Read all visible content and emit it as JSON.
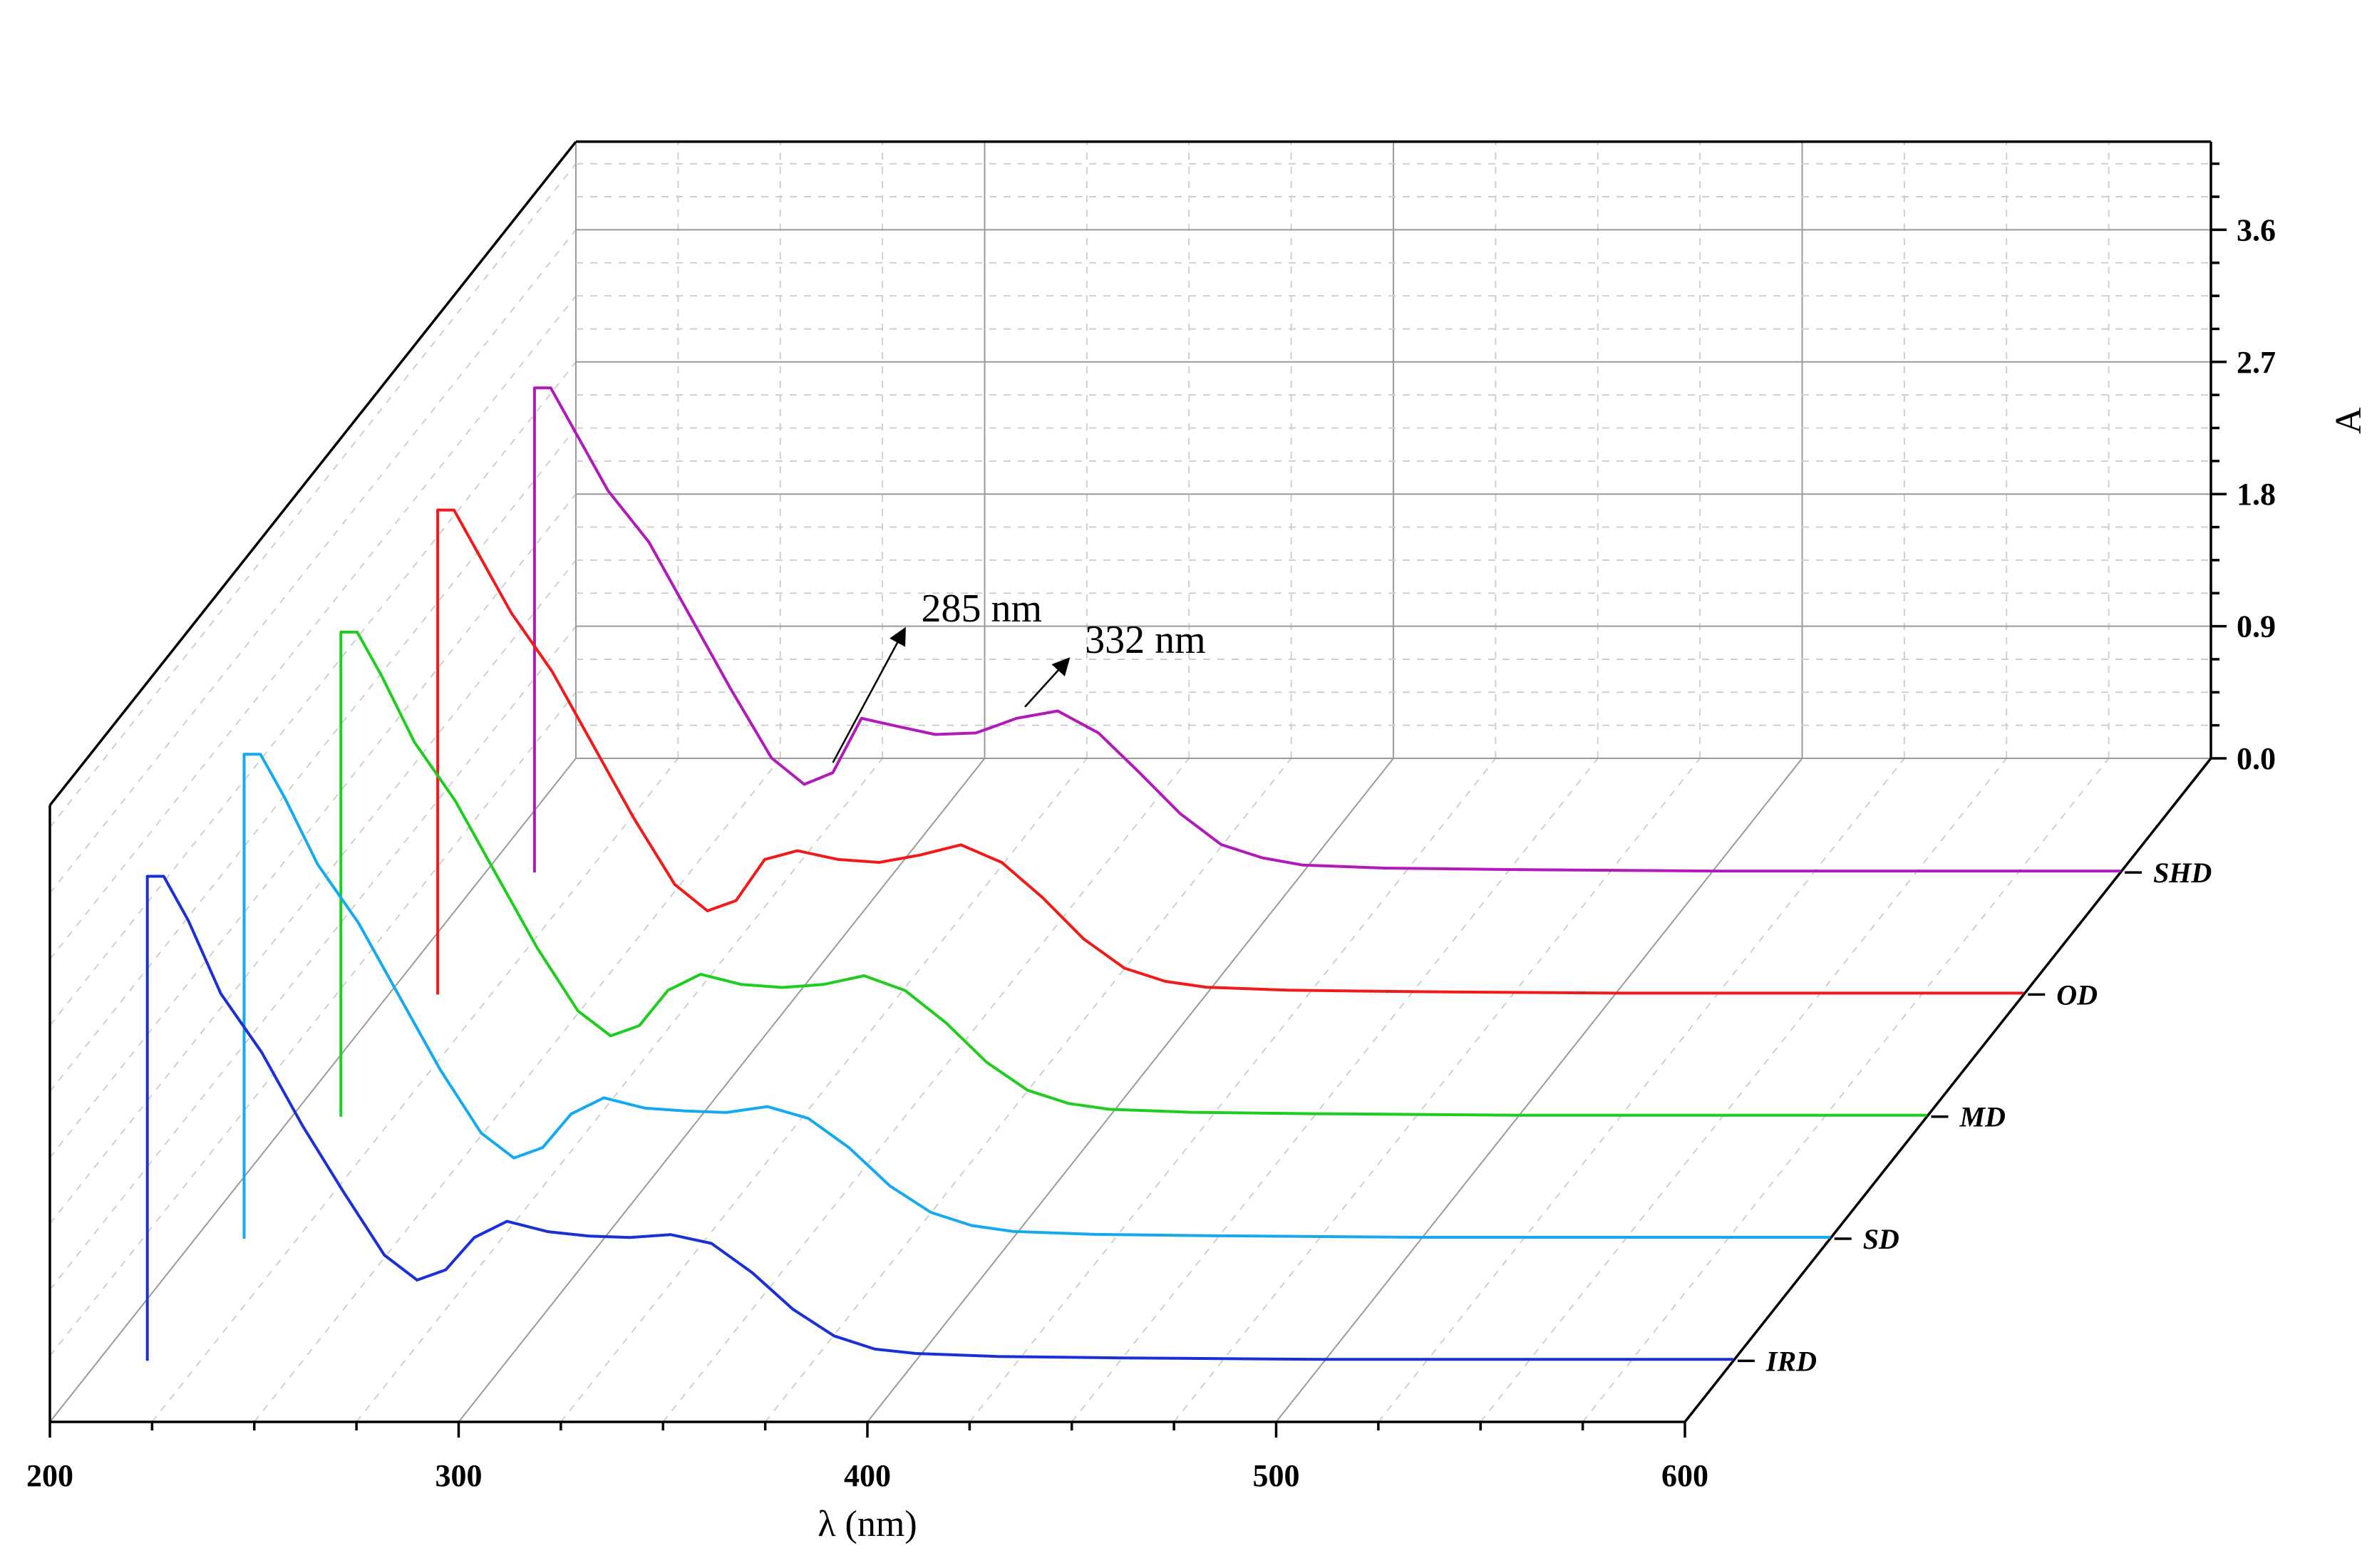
{
  "chart_data": {
    "type": "line",
    "style": "3d-waterfall",
    "xlabel": "λ (nm)",
    "zlabel": "A",
    "xlim": [
      200,
      600
    ],
    "xticks": [
      "200",
      "300",
      "400",
      "500",
      "600"
    ],
    "zlim": [
      0,
      4.2
    ],
    "zticks": [
      "0.0",
      "0.9",
      "1.8",
      "2.7",
      "3.6"
    ],
    "series": [
      {
        "name": "IRD",
        "color": "#1a2fd6",
        "x": [
          212,
          216,
          222,
          230,
          240,
          250,
          260,
          270,
          278,
          285,
          292,
          300,
          310,
          320,
          330,
          340,
          350,
          360,
          370,
          380,
          390,
          400,
          420,
          450,
          500,
          550,
          600
        ],
        "y": [
          3.3,
          3.3,
          3.0,
          2.5,
          2.1,
          1.6,
          1.15,
          0.72,
          0.55,
          0.62,
          0.84,
          0.95,
          0.88,
          0.85,
          0.84,
          0.86,
          0.8,
          0.6,
          0.35,
          0.17,
          0.08,
          0.05,
          0.03,
          0.02,
          0.01,
          0.01,
          0.01
        ]
      },
      {
        "name": "SD",
        "color": "#17a9f0",
        "x": [
          212,
          216,
          222,
          230,
          240,
          250,
          260,
          270,
          278,
          285,
          292,
          300,
          310,
          320,
          330,
          340,
          350,
          360,
          370,
          380,
          390,
          400,
          420,
          450,
          500,
          550,
          600
        ],
        "y": [
          3.3,
          3.3,
          3.0,
          2.55,
          2.15,
          1.65,
          1.15,
          0.72,
          0.55,
          0.62,
          0.85,
          0.96,
          0.89,
          0.87,
          0.86,
          0.9,
          0.82,
          0.62,
          0.36,
          0.18,
          0.09,
          0.05,
          0.03,
          0.02,
          0.01,
          0.01,
          0.01
        ]
      },
      {
        "name": "MD",
        "color": "#1fcc1f",
        "x": [
          212,
          216,
          222,
          230,
          240,
          250,
          260,
          270,
          278,
          285,
          292,
          300,
          310,
          320,
          330,
          340,
          350,
          360,
          370,
          380,
          390,
          400,
          420,
          450,
          500,
          550,
          600
        ],
        "y": [
          3.3,
          3.3,
          3.0,
          2.55,
          2.15,
          1.65,
          1.15,
          0.72,
          0.55,
          0.62,
          0.86,
          0.97,
          0.9,
          0.88,
          0.9,
          0.96,
          0.86,
          0.64,
          0.37,
          0.18,
          0.09,
          0.05,
          0.03,
          0.02,
          0.01,
          0.01,
          0.01
        ]
      },
      {
        "name": "OD",
        "color": "#f01a1a",
        "x": [
          212,
          216,
          222,
          230,
          240,
          250,
          260,
          270,
          278,
          285,
          292,
          300,
          310,
          320,
          330,
          340,
          350,
          360,
          370,
          380,
          390,
          400,
          420,
          450,
          500,
          550,
          600
        ],
        "y": [
          3.3,
          3.3,
          3.0,
          2.6,
          2.2,
          1.7,
          1.2,
          0.75,
          0.57,
          0.64,
          0.92,
          0.98,
          0.92,
          0.9,
          0.95,
          1.02,
          0.9,
          0.66,
          0.38,
          0.18,
          0.09,
          0.05,
          0.03,
          0.02,
          0.01,
          0.01,
          0.01
        ]
      },
      {
        "name": "SHD",
        "color": "#b01ab8",
        "x": [
          212,
          216,
          222,
          230,
          240,
          250,
          260,
          270,
          278,
          285,
          292,
          300,
          310,
          320,
          330,
          340,
          350,
          360,
          370,
          380,
          390,
          400,
          420,
          450,
          500,
          550,
          600
        ],
        "y": [
          3.3,
          3.3,
          3.0,
          2.6,
          2.25,
          1.75,
          1.25,
          0.78,
          0.6,
          0.68,
          1.05,
          1.0,
          0.94,
          0.95,
          1.05,
          1.1,
          0.95,
          0.68,
          0.4,
          0.19,
          0.1,
          0.05,
          0.03,
          0.02,
          0.01,
          0.01,
          0.01
        ]
      }
    ],
    "annotations": [
      {
        "text": "285 nm",
        "x": 285,
        "series": "SHD"
      },
      {
        "text": "332 nm",
        "x": 332,
        "series": "SHD"
      }
    ],
    "grid": true
  }
}
